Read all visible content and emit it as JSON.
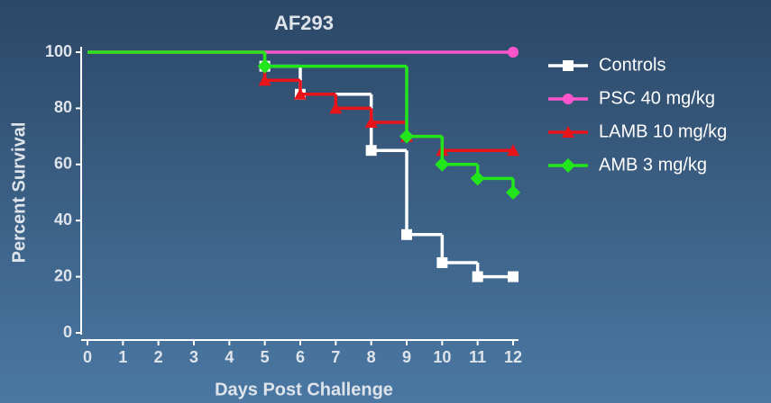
{
  "chart_data": {
    "type": "step",
    "title": "AF293",
    "x_label": "Days Post Challenge",
    "y_label": "Percent Survival",
    "xlim": [
      0,
      12
    ],
    "xticks": [
      0,
      1,
      2,
      3,
      4,
      5,
      6,
      7,
      8,
      9,
      10,
      11,
      12
    ],
    "ylim": [
      0,
      100
    ],
    "yticks": [
      0,
      20,
      40,
      60,
      80,
      100
    ],
    "legend": "right",
    "series": [
      {
        "name": "Controls",
        "color": "#ffffff",
        "marker": "square",
        "x": [
          0,
          5,
          6,
          8,
          9,
          10,
          11,
          12
        ],
        "values": [
          100,
          95,
          85,
          65,
          35,
          25,
          20,
          20
        ]
      },
      {
        "name": "PSC 40 mg/kg",
        "color": "#ff55cc",
        "marker": "circle",
        "x": [
          0,
          12
        ],
        "values": [
          100,
          100
        ]
      },
      {
        "name": "LAMB 10 mg/kg",
        "color": "#e8141a",
        "marker": "triangle",
        "x": [
          0,
          5,
          6,
          7,
          8,
          9,
          10,
          12
        ],
        "values": [
          100,
          90,
          85,
          80,
          75,
          70,
          65,
          65
        ]
      },
      {
        "name": "AMB 3 mg/kg",
        "color": "#22e61c",
        "marker": "diamond",
        "x": [
          0,
          5,
          9,
          10,
          11,
          12
        ],
        "values": [
          100,
          95,
          70,
          60,
          55,
          50
        ]
      }
    ]
  }
}
